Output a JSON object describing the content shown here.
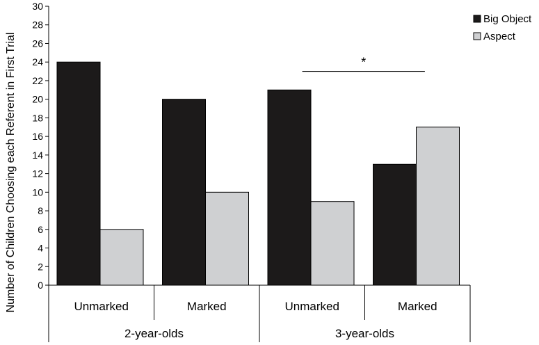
{
  "chart_data": {
    "type": "bar",
    "title": "",
    "ylabel": "Number of Children Choosing each Referent in First Trial",
    "xlabel": "",
    "ylim": [
      0,
      30
    ],
    "yticks": [
      0,
      2,
      4,
      6,
      8,
      10,
      12,
      14,
      16,
      18,
      20,
      22,
      24,
      26,
      28,
      30
    ],
    "categories": [
      "Unmarked",
      "Marked",
      "Unmarked",
      "Marked"
    ],
    "groups": [
      {
        "label": "2-year-olds",
        "categories": [
          0,
          1
        ]
      },
      {
        "label": "3-year-olds",
        "categories": [
          2,
          3
        ]
      }
    ],
    "series": [
      {
        "name": "Big Object",
        "color": "#1c1a1a",
        "values": [
          24,
          20,
          21,
          13
        ]
      },
      {
        "name": "Aspect",
        "color": "#cfd0d2",
        "values": [
          6,
          10,
          9,
          17
        ]
      }
    ],
    "legend_position": "top-right",
    "grid": false,
    "annotations": [
      {
        "text": "*",
        "between_categories": [
          2,
          3
        ],
        "y": 23
      }
    ]
  }
}
